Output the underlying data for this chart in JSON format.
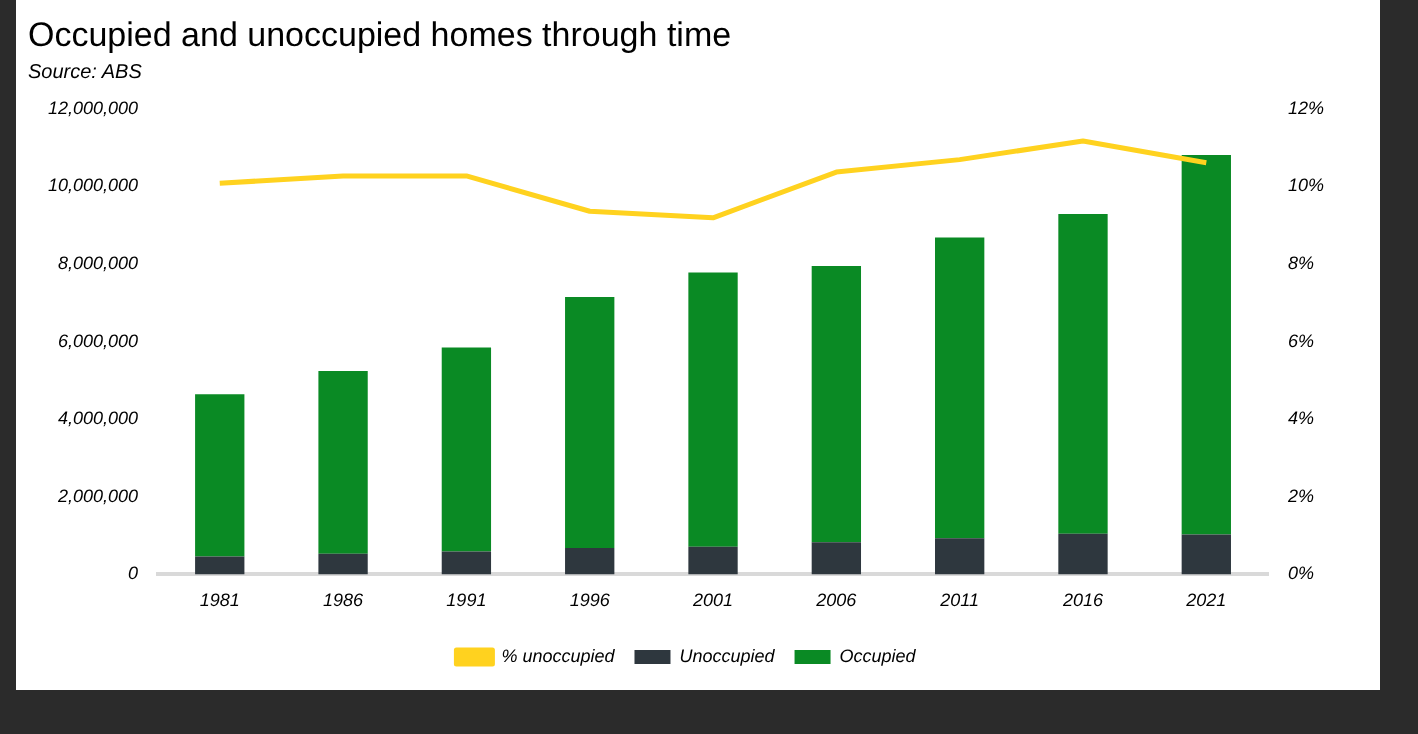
{
  "chart_data": {
    "type": "bar",
    "title": "Occupied and unoccupied homes through time",
    "subtitle": "Source: ABS",
    "categories": [
      "1981",
      "1986",
      "1991",
      "1996",
      "2001",
      "2006",
      "2011",
      "2016",
      "2021"
    ],
    "stacked": true,
    "series": [
      {
        "name": "Unoccupied",
        "color": "#2e373e",
        "values": [
          460000,
          530000,
          590000,
          680000,
          710000,
          830000,
          930000,
          1050000,
          1030000
        ]
      },
      {
        "name": "Occupied",
        "color": "#0a8a24",
        "values": [
          4180000,
          4710000,
          5260000,
          6470000,
          7070000,
          7120000,
          7750000,
          8240000,
          9780000
        ]
      },
      {
        "name": "% unoccupied",
        "type": "line",
        "axis": "y2",
        "color": "#ffd21f",
        "values": [
          10.08,
          10.27,
          10.27,
          9.36,
          9.19,
          10.37,
          10.69,
          11.17,
          10.61
        ]
      }
    ],
    "ylim": [
      0,
      12000000
    ],
    "yticks": [
      {
        "value": 0,
        "label": "0"
      },
      {
        "value": 2000000,
        "label": "2,000,000"
      },
      {
        "value": 4000000,
        "label": "4,000,000"
      },
      {
        "value": 6000000,
        "label": "6,000,000"
      },
      {
        "value": 8000000,
        "label": "8,000,000"
      },
      {
        "value": 10000000,
        "label": "10,000,000"
      },
      {
        "value": 12000000,
        "label": "12,000,000"
      }
    ],
    "y2lim": [
      0,
      12
    ],
    "y2ticks": [
      {
        "value": 0,
        "label": "0%"
      },
      {
        "value": 2,
        "label": "2%"
      },
      {
        "value": 4,
        "label": "4%"
      },
      {
        "value": 6,
        "label": "6%"
      },
      {
        "value": 8,
        "label": "8%"
      },
      {
        "value": 10,
        "label": "10%"
      },
      {
        "value": 12,
        "label": "12%"
      }
    ],
    "grid": false,
    "legend": "bottom",
    "marker": "none",
    "line_style": "solid"
  }
}
